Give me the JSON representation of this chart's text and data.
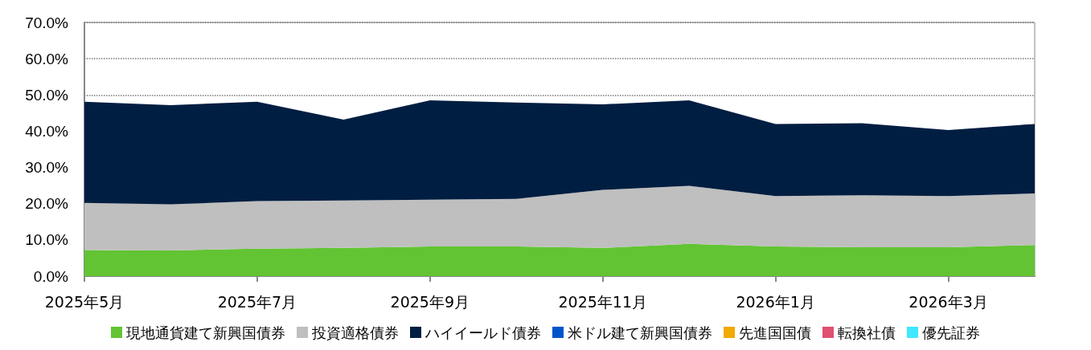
{
  "chart_data": {
    "type": "area",
    "stacked": true,
    "categories": [
      "2025年5月",
      null,
      "2025年7月",
      null,
      "2025年9月",
      null,
      "2025年11月",
      null,
      "2026年1月",
      null,
      "2026年3月",
      null
    ],
    "series": [
      {
        "name": "現地通貨建て新興国債券",
        "color": "#62c433",
        "values": [
          7.2,
          7.1,
          7.6,
          7.8,
          8.2,
          8.2,
          7.8,
          8.9,
          8.2,
          8.0,
          8.0,
          8.6
        ]
      },
      {
        "name": "投資適格債券",
        "color": "#bfbfbf",
        "values": [
          13.0,
          12.7,
          13.1,
          13.1,
          12.9,
          13.1,
          16.0,
          16.0,
          13.9,
          14.3,
          14.1,
          14.2
        ]
      },
      {
        "name": "ハイイールド債券",
        "color": "#001e41",
        "values": [
          27.9,
          27.4,
          27.4,
          22.3,
          27.4,
          26.6,
          23.6,
          23.6,
          19.9,
          19.9,
          18.2,
          19.2
        ]
      },
      {
        "name": "米ドル建て新興国債券",
        "color": "#0055c8",
        "values": [
          null,
          null,
          null,
          null,
          null,
          null,
          null,
          null,
          null,
          null,
          null,
          null
        ]
      },
      {
        "name": "先進国国債",
        "color": "#f2a900",
        "values": [
          null,
          null,
          null,
          null,
          null,
          null,
          null,
          null,
          null,
          null,
          null,
          null
        ]
      },
      {
        "name": "転換社債",
        "color": "#e05070",
        "values": [
          null,
          null,
          null,
          null,
          null,
          null,
          null,
          null,
          null,
          null,
          null,
          null
        ]
      },
      {
        "name": "優先証券",
        "color": "#40e8ff",
        "values": [
          null,
          null,
          null,
          null,
          null,
          null,
          null,
          null,
          null,
          null,
          null,
          null
        ]
      }
    ],
    "ylim": [
      0,
      70
    ],
    "yticks": [
      {
        "value": 0,
        "label": "0.0%"
      },
      {
        "value": 10,
        "label": "10.0%"
      },
      {
        "value": 20,
        "label": "20.0%"
      },
      {
        "value": 30,
        "label": "30.0%"
      },
      {
        "value": 40,
        "label": "40.0%"
      },
      {
        "value": 50,
        "label": "50.0%"
      },
      {
        "value": 60,
        "label": "60.0%"
      },
      {
        "value": 70,
        "label": "70.0%"
      }
    ],
    "grid": "y",
    "legend": "bottom"
  }
}
